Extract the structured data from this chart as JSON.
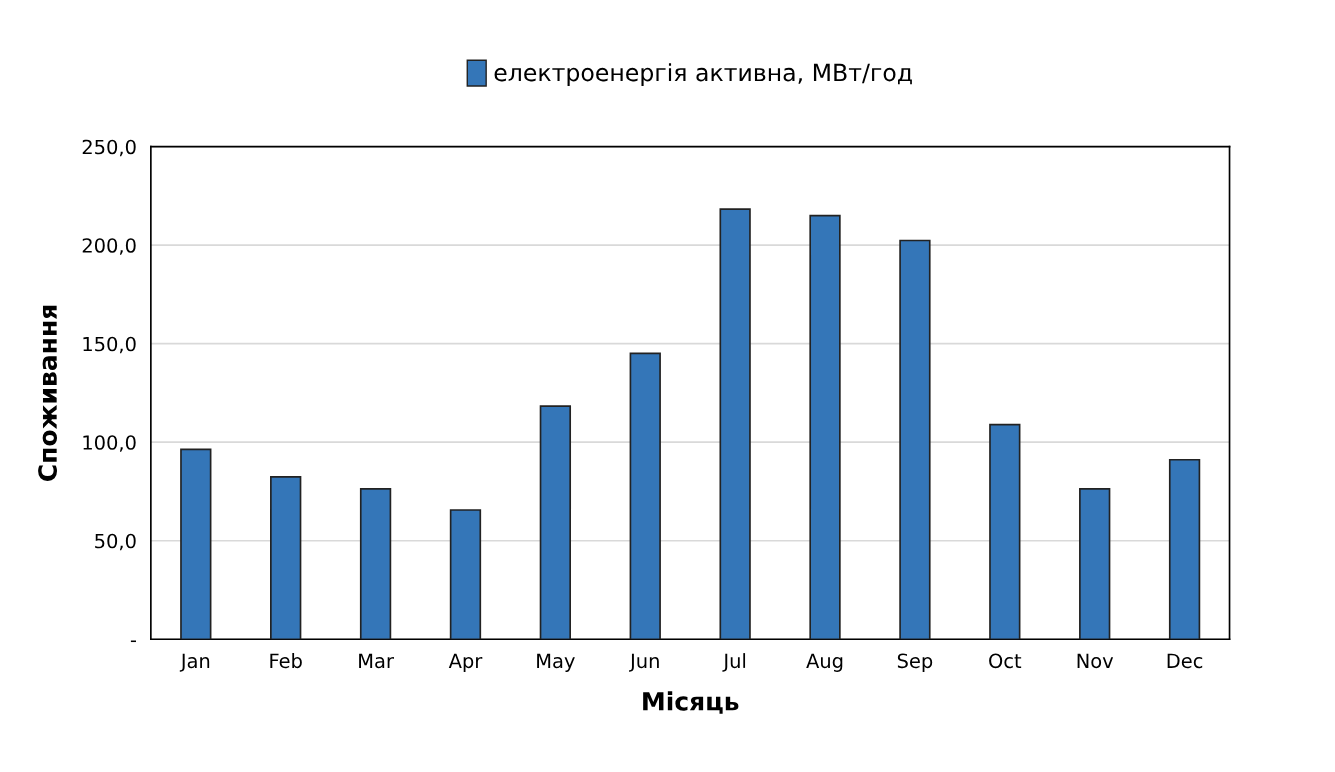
{
  "chart_data": {
    "type": "bar",
    "xlabel": "Місяць",
    "ylabel": "Споживання",
    "categories": [
      "Jan",
      "Feb",
      "Mar",
      "Apr",
      "May",
      "Jun",
      "Jul",
      "Aug",
      "Sep",
      "Oct",
      "Nov",
      "Dec"
    ],
    "series": [
      {
        "name": "електроенергія активна, МВт/год",
        "color": "#3476b8",
        "values": [
          96.4,
          82.4,
          76.3,
          65.6,
          118.3,
          145.1,
          218.3,
          215.0,
          202.4,
          108.9,
          76.3,
          91.1
        ]
      }
    ],
    "ylim": [
      0,
      250
    ],
    "yticks": [
      {
        "value": 0,
        "label": "-"
      },
      {
        "value": 50,
        "label": "50,0"
      },
      {
        "value": 100,
        "label": "100,0"
      },
      {
        "value": 150,
        "label": "150,0"
      },
      {
        "value": 200,
        "label": "200,0"
      },
      {
        "value": 250,
        "label": "250,0"
      }
    ],
    "grid": "y",
    "legend": "top"
  }
}
